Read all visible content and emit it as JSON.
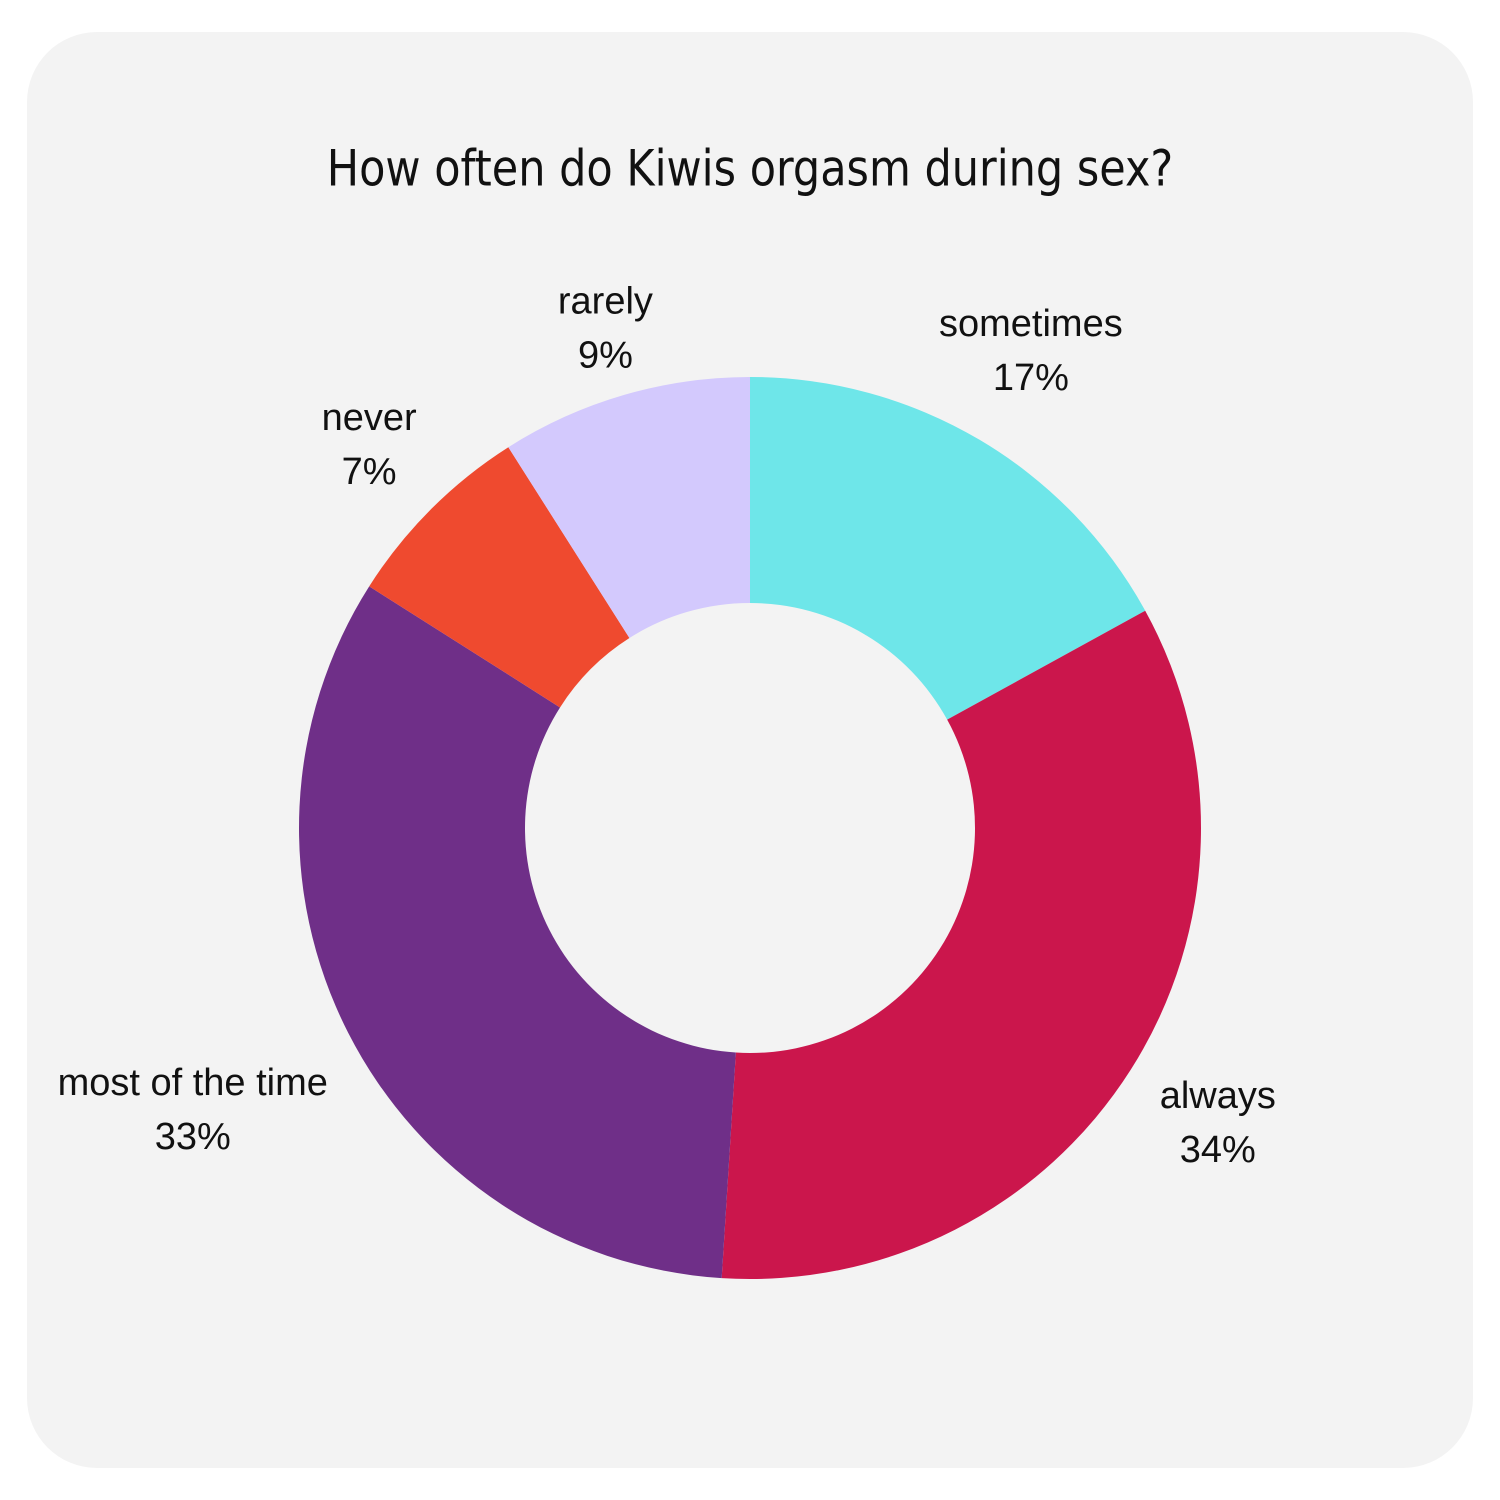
{
  "chart_data": {
    "type": "donut",
    "title": "How often do Kiwis orgasm during sex?",
    "categories": [
      "sometimes",
      "always",
      "most of the time",
      "never",
      "rarely"
    ],
    "values": [
      17,
      34,
      33,
      7,
      9
    ],
    "value_labels": [
      "17%",
      "34%",
      "33%",
      "7%",
      "9%"
    ],
    "colors": [
      "#6ee6e9",
      "#cb164c",
      "#6f2f88",
      "#ef4a2f",
      "#d3c9fd"
    ]
  }
}
